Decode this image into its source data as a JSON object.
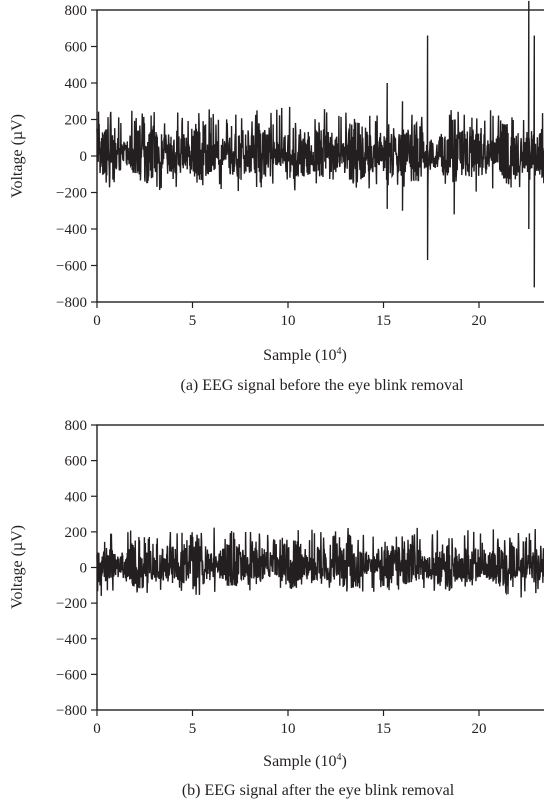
{
  "chart_data": [
    {
      "type": "line",
      "caption": "(a) EEG signal before the eye blink removal",
      "xlabel": "Sample (10",
      "xlabel_sup": "4",
      "xlabel_end": ")",
      "ylabel": "Voltage (µV)",
      "xlim": [
        0,
        24
      ],
      "ylim": [
        -800,
        800
      ],
      "xticks": [
        0,
        5,
        10,
        15,
        20
      ],
      "yticks": [
        800,
        600,
        400,
        200,
        0,
        -200,
        -400,
        -600,
        -800
      ],
      "series": [
        {
          "color": "#231f20",
          "baseline_amplitude": 230,
          "spikes": [
            {
              "x": 15.2,
              "min": -290,
              "max": 400
            },
            {
              "x": 16.0,
              "min": -300,
              "max": 300
            },
            {
              "x": 17.3,
              "min": -570,
              "max": 660
            },
            {
              "x": 18.7,
              "min": -320,
              "max": 200
            },
            {
              "x": 22.6,
              "min": -400,
              "max": 850
            },
            {
              "x": 22.9,
              "min": -720,
              "max": 660
            }
          ]
        }
      ]
    },
    {
      "type": "line",
      "caption": "(b) EEG signal after the eye blink removal",
      "xlabel": "Sample (10",
      "xlabel_sup": "4",
      "xlabel_end": ")",
      "ylabel": "Voltage (µV)",
      "xlim": [
        0,
        24
      ],
      "ylim": [
        -800,
        800
      ],
      "xticks": [
        0,
        5,
        10,
        15,
        20
      ],
      "yticks": [
        800,
        600,
        400,
        200,
        0,
        -200,
        -400,
        -600,
        -800
      ],
      "series": [
        {
          "color": "#231f20",
          "baseline_amplitude": 190,
          "spikes": []
        }
      ]
    }
  ]
}
